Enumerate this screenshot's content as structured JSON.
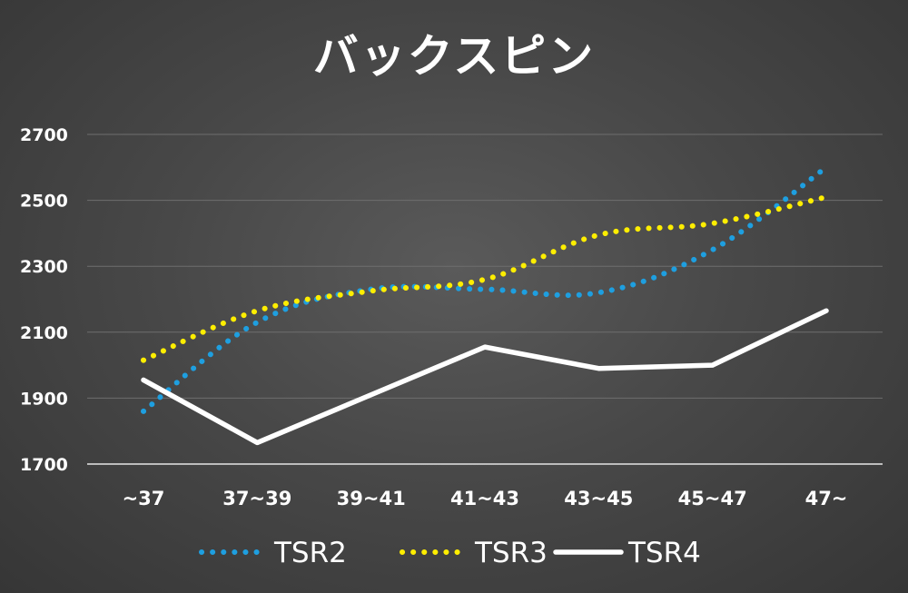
{
  "chart_data": {
    "type": "line",
    "title": "バックスピン",
    "categories": [
      "~37",
      "37~39",
      "39~41",
      "41~43",
      "43~45",
      "45~47",
      "47~"
    ],
    "ylim": [
      1700,
      2700
    ],
    "yticks": [
      1700,
      1900,
      2100,
      2300,
      2500,
      2700
    ],
    "grid": true,
    "legend": "bottom",
    "series": [
      {
        "name": "TSR2",
        "values": [
          1860,
          2130,
          2230,
          2230,
          2220,
          2350,
          2600
        ],
        "color": "#1e9fe0",
        "style": "dotted"
      },
      {
        "name": "TSR3",
        "values": [
          2015,
          2165,
          2225,
          2260,
          2395,
          2430,
          2510
        ],
        "color": "#ffee00",
        "style": "dotted"
      },
      {
        "name": "TSR4",
        "values": [
          1955,
          1765,
          1910,
          2055,
          1990,
          2000,
          2165
        ],
        "color": "#ffffff",
        "style": "solid"
      }
    ]
  }
}
